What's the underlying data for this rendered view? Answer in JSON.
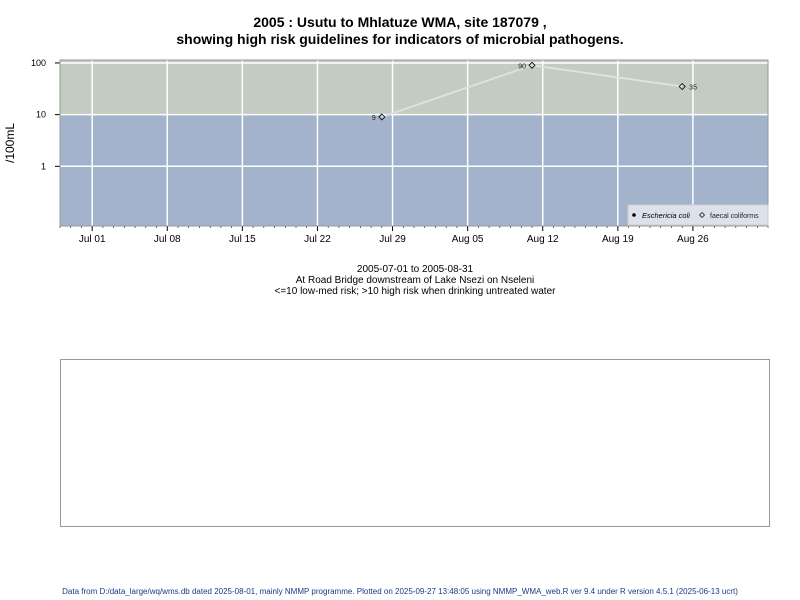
{
  "title": {
    "line1": "2005 : Usutu to Mhlatuze WMA, site 187079 ,",
    "line2": "showing high risk guidelines for indicators of microbial pathogens."
  },
  "subtitle": {
    "date_range": "2005-07-01 to 2005-08-31",
    "location": "At Road Bridge downstream of Lake Nsezi on Nseleni",
    "guideline": "<=10 low-med risk; >10 high risk when drinking untreated water"
  },
  "footer": "Data from D:/data_large/wq/wms.db dated 2025-08-01, mainly NMMP programme. Plotted on 2025-09-27 13:48:05 using NMMP_WMA_web.R ver 9.4 under R version 4.5.1 (2025-06-13 ucrt)",
  "chart_data": {
    "type": "line",
    "ylabel": "/100mL",
    "xlabel": "",
    "y_scale": "log",
    "ylim": [
      0.07,
      114
    ],
    "xlim": [
      "2005-06-28",
      "2005-09-02"
    ],
    "y_ticks": [
      1,
      10,
      100
    ],
    "y_tick_labels": [
      "1",
      "10",
      "100"
    ],
    "x_ticks": [
      "2005-07-01",
      "2005-07-08",
      "2005-07-15",
      "2005-07-22",
      "2005-07-29",
      "2005-08-05",
      "2005-08-12",
      "2005-08-19",
      "2005-08-26"
    ],
    "x_tick_labels": [
      "Jul 01",
      "Jul 08",
      "Jul 15",
      "Jul 22",
      "Jul 29",
      "Aug 05",
      "Aug 12",
      "Aug 19",
      "Aug 26"
    ],
    "grid": true,
    "bands": [
      {
        "from": 0.07,
        "to": 10,
        "color": "#a2b3cb"
      },
      {
        "from": 10,
        "to": 114,
        "color": "#c2ccc1"
      }
    ],
    "legend_position": "bottom-right",
    "legend": [
      "Eschericia coli",
      "faecal coliforms"
    ],
    "series": [
      {
        "name": "Eschericia coli",
        "marker": "filled-dot",
        "x": [],
        "y": []
      },
      {
        "name": "faecal coliforms",
        "marker": "open-diamond",
        "line_color": "#e0e0e0",
        "x": [
          "2005-07-28",
          "2005-08-11",
          "2005-08-25"
        ],
        "y": [
          9,
          90,
          35
        ],
        "labels": [
          "9",
          "90",
          "35"
        ]
      }
    ]
  }
}
